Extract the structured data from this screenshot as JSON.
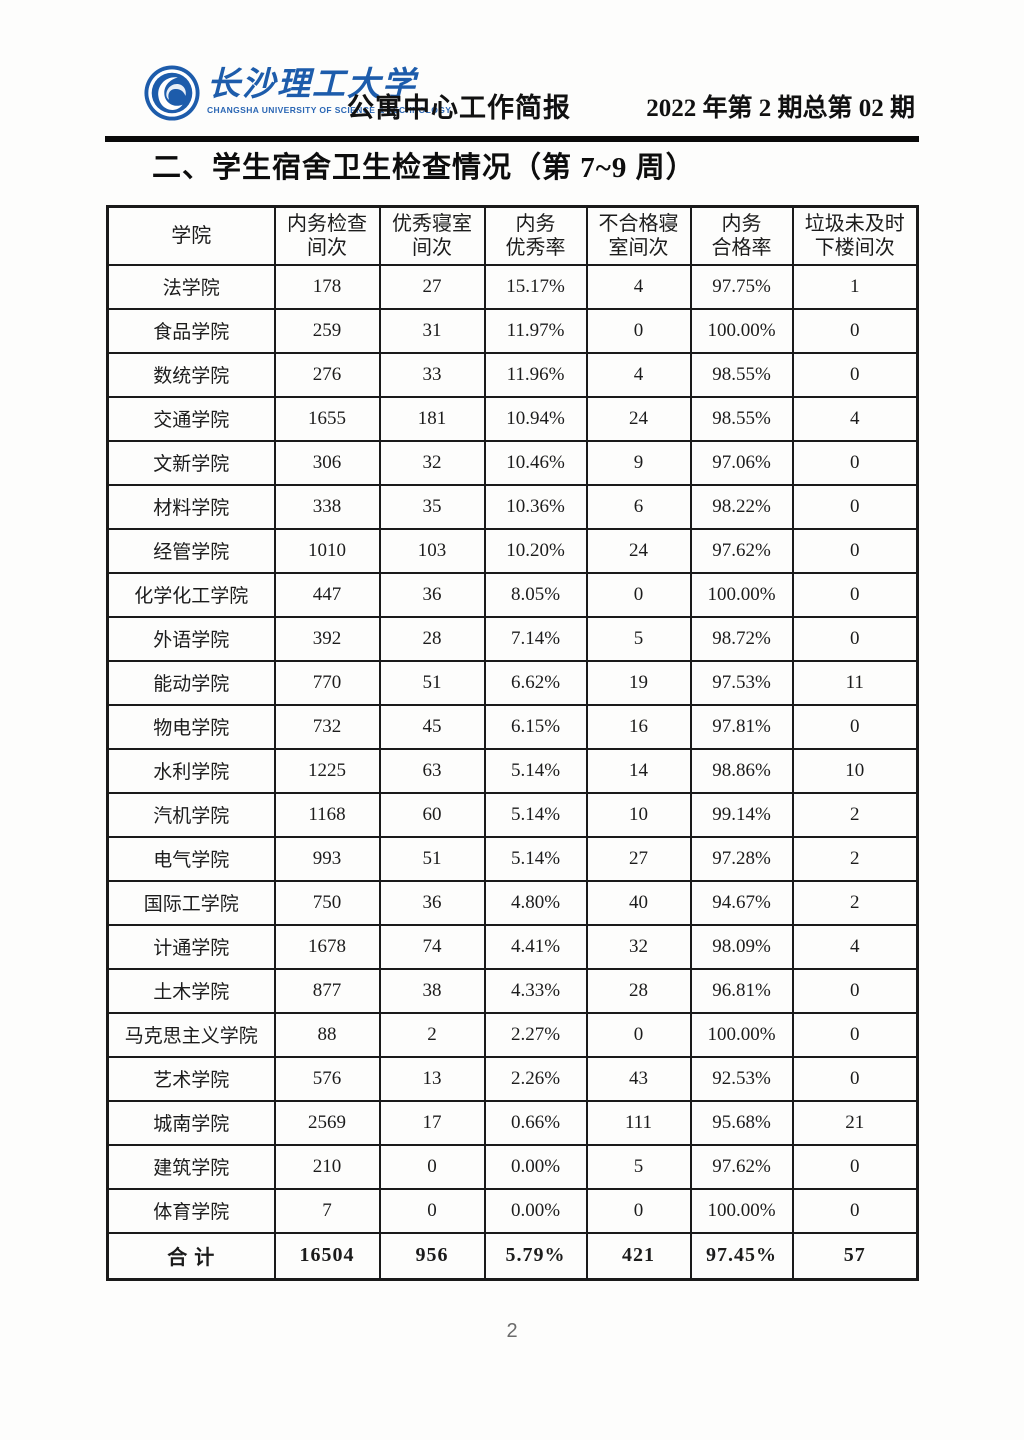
{
  "header": {
    "university_cn": "长沙理工大学",
    "university_en": "CHANGSHA UNIVERSITY OF SCIENCE & TECHNOLOGY",
    "bulletin_title": "公寓中心工作简报",
    "issue": "2022 年第 2 期总第 02 期"
  },
  "section_title": "二、学生宿舍卫生检查情况（第 7~9 周）",
  "colors": {
    "brand_blue": "#1d5cab",
    "ink": "#1a1a1a"
  },
  "table": {
    "columns": [
      "学院",
      "内务检查\n间次",
      "优秀寝室\n间次",
      "内务\n优秀率",
      "不合格寝\n室间次",
      "内务\n合格率",
      "垃圾未及时\n下楼间次"
    ],
    "rows": [
      [
        "法学院",
        "178",
        "27",
        "15.17%",
        "4",
        "97.75%",
        "1"
      ],
      [
        "食品学院",
        "259",
        "31",
        "11.97%",
        "0",
        "100.00%",
        "0"
      ],
      [
        "数统学院",
        "276",
        "33",
        "11.96%",
        "4",
        "98.55%",
        "0"
      ],
      [
        "交通学院",
        "1655",
        "181",
        "10.94%",
        "24",
        "98.55%",
        "4"
      ],
      [
        "文新学院",
        "306",
        "32",
        "10.46%",
        "9",
        "97.06%",
        "0"
      ],
      [
        "材料学院",
        "338",
        "35",
        "10.36%",
        "6",
        "98.22%",
        "0"
      ],
      [
        "经管学院",
        "1010",
        "103",
        "10.20%",
        "24",
        "97.62%",
        "0"
      ],
      [
        "化学化工学院",
        "447",
        "36",
        "8.05%",
        "0",
        "100.00%",
        "0"
      ],
      [
        "外语学院",
        "392",
        "28",
        "7.14%",
        "5",
        "98.72%",
        "0"
      ],
      [
        "能动学院",
        "770",
        "51",
        "6.62%",
        "19",
        "97.53%",
        "11"
      ],
      [
        "物电学院",
        "732",
        "45",
        "6.15%",
        "16",
        "97.81%",
        "0"
      ],
      [
        "水利学院",
        "1225",
        "63",
        "5.14%",
        "14",
        "98.86%",
        "10"
      ],
      [
        "汽机学院",
        "1168",
        "60",
        "5.14%",
        "10",
        "99.14%",
        "2"
      ],
      [
        "电气学院",
        "993",
        "51",
        "5.14%",
        "27",
        "97.28%",
        "2"
      ],
      [
        "国际工学院",
        "750",
        "36",
        "4.80%",
        "40",
        "94.67%",
        "2"
      ],
      [
        "计通学院",
        "1678",
        "74",
        "4.41%",
        "32",
        "98.09%",
        "4"
      ],
      [
        "土木学院",
        "877",
        "38",
        "4.33%",
        "28",
        "96.81%",
        "0"
      ],
      [
        "马克思主义学院",
        "88",
        "2",
        "2.27%",
        "0",
        "100.00%",
        "0"
      ],
      [
        "艺术学院",
        "576",
        "13",
        "2.26%",
        "43",
        "92.53%",
        "0"
      ],
      [
        "城南学院",
        "2569",
        "17",
        "0.66%",
        "111",
        "95.68%",
        "21"
      ],
      [
        "建筑学院",
        "210",
        "0",
        "0.00%",
        "5",
        "97.62%",
        "0"
      ],
      [
        "体育学院",
        "7",
        "0",
        "0.00%",
        "0",
        "100.00%",
        "0"
      ]
    ],
    "total_row": [
      "合  计",
      "16504",
      "956",
      "5.79%",
      "421",
      "97.45%",
      "57"
    ]
  },
  "page_number": "2"
}
